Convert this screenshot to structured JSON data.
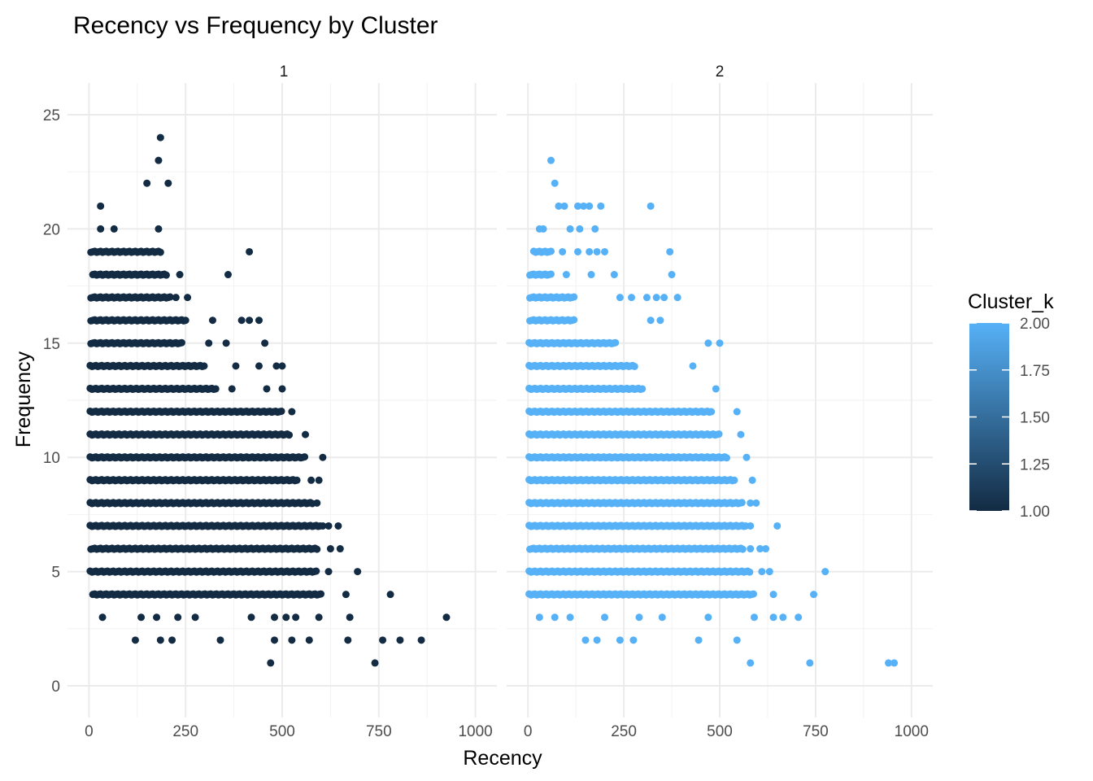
{
  "chart_data": {
    "type": "scatter",
    "title": "Recency vs Frequency by Cluster",
    "xlabel": "Recency",
    "ylabel": "Frequency",
    "facet_labels": [
      "1",
      "2"
    ],
    "xlim": [
      0,
      1000
    ],
    "ylim": [
      0,
      25
    ],
    "x_ticks": [
      0,
      250,
      500,
      750,
      1000
    ],
    "x_tick_labels": [
      "0",
      "250",
      "500",
      "750",
      "1000"
    ],
    "y_ticks": [
      0,
      5,
      10,
      15,
      20,
      25
    ],
    "y_tick_labels": [
      "0",
      "5",
      "10",
      "15",
      "20",
      "25"
    ],
    "grid": true,
    "legend": {
      "title": "Cluster_k",
      "position": "right",
      "ticks": [
        "1.00",
        "1.25",
        "1.50",
        "1.75",
        "2.00"
      ],
      "tick_values": [
        1.0,
        1.25,
        1.5,
        1.75,
        2.0
      ],
      "color_low": "#132b43",
      "color_high": "#56b1f7"
    },
    "panels": [
      {
        "facet": "1",
        "cluster_k": 1,
        "color": "#132b43",
        "dense_rows": [
          {
            "y": 19,
            "x0": 5,
            "x1": 185
          },
          {
            "y": 18,
            "x0": 10,
            "x1": 200
          },
          {
            "y": 17,
            "x0": 5,
            "x1": 210
          },
          {
            "y": 16,
            "x0": 5,
            "x1": 250
          },
          {
            "y": 15,
            "x0": 5,
            "x1": 240
          },
          {
            "y": 14,
            "x0": 3,
            "x1": 300
          },
          {
            "y": 13,
            "x0": 3,
            "x1": 330
          },
          {
            "y": 12,
            "x0": 3,
            "x1": 500
          },
          {
            "y": 11,
            "x0": 3,
            "x1": 520
          },
          {
            "y": 10,
            "x0": 3,
            "x1": 560
          },
          {
            "y": 9,
            "x0": 3,
            "x1": 540
          },
          {
            "y": 8,
            "x0": 3,
            "x1": 580
          },
          {
            "y": 7,
            "x0": 3,
            "x1": 600
          },
          {
            "y": 6,
            "x0": 5,
            "x1": 590
          },
          {
            "y": 5,
            "x0": 3,
            "x1": 590
          },
          {
            "y": 4,
            "x0": 10,
            "x1": 600
          }
        ],
        "points": [
          [
            185,
            24
          ],
          [
            180,
            23
          ],
          [
            150,
            22
          ],
          [
            205,
            22
          ],
          [
            30,
            21
          ],
          [
            30,
            20
          ],
          [
            65,
            20
          ],
          [
            180,
            20
          ],
          [
            415,
            19
          ],
          [
            235,
            18
          ],
          [
            360,
            18
          ],
          [
            225,
            17
          ],
          [
            255,
            17
          ],
          [
            320,
            16
          ],
          [
            395,
            16
          ],
          [
            415,
            16
          ],
          [
            440,
            16
          ],
          [
            310,
            15
          ],
          [
            355,
            15
          ],
          [
            455,
            15
          ],
          [
            250,
            14
          ],
          [
            380,
            14
          ],
          [
            440,
            14
          ],
          [
            485,
            14
          ],
          [
            500,
            14
          ],
          [
            370,
            13
          ],
          [
            460,
            13
          ],
          [
            500,
            13
          ],
          [
            525,
            12
          ],
          [
            560,
            11
          ],
          [
            605,
            10
          ],
          [
            575,
            9
          ],
          [
            595,
            9
          ],
          [
            590,
            8
          ],
          [
            605,
            7
          ],
          [
            620,
            7
          ],
          [
            645,
            7
          ],
          [
            625,
            6
          ],
          [
            650,
            6
          ],
          [
            620,
            5
          ],
          [
            695,
            5
          ],
          [
            665,
            4
          ],
          [
            780,
            4
          ],
          [
            35,
            3
          ],
          [
            135,
            3
          ],
          [
            175,
            3
          ],
          [
            230,
            3
          ],
          [
            275,
            3
          ],
          [
            420,
            3
          ],
          [
            480,
            3
          ],
          [
            510,
            3
          ],
          [
            535,
            3
          ],
          [
            595,
            3
          ],
          [
            675,
            3
          ],
          [
            925,
            3
          ],
          [
            120,
            2
          ],
          [
            185,
            2
          ],
          [
            215,
            2
          ],
          [
            340,
            2
          ],
          [
            480,
            2
          ],
          [
            525,
            2
          ],
          [
            570,
            2
          ],
          [
            670,
            2
          ],
          [
            760,
            2
          ],
          [
            805,
            2
          ],
          [
            860,
            2
          ],
          [
            470,
            1
          ],
          [
            740,
            1
          ]
        ]
      },
      {
        "facet": "2",
        "cluster_k": 2,
        "color": "#56b1f7",
        "dense_rows": [
          {
            "y": 19,
            "x0": 15,
            "x1": 60
          },
          {
            "y": 18,
            "x0": 5,
            "x1": 60
          },
          {
            "y": 17,
            "x0": 5,
            "x1": 120
          },
          {
            "y": 16,
            "x0": 5,
            "x1": 120
          },
          {
            "y": 15,
            "x0": 3,
            "x1": 230
          },
          {
            "y": 14,
            "x0": 3,
            "x1": 280
          },
          {
            "y": 13,
            "x0": 3,
            "x1": 300
          },
          {
            "y": 12,
            "x0": 3,
            "x1": 480
          },
          {
            "y": 11,
            "x0": 3,
            "x1": 500
          },
          {
            "y": 10,
            "x0": 3,
            "x1": 520
          },
          {
            "y": 9,
            "x0": 3,
            "x1": 540
          },
          {
            "y": 8,
            "x0": 3,
            "x1": 560
          },
          {
            "y": 7,
            "x0": 3,
            "x1": 570
          },
          {
            "y": 6,
            "x0": 5,
            "x1": 560
          },
          {
            "y": 5,
            "x0": 3,
            "x1": 580
          },
          {
            "y": 4,
            "x0": 3,
            "x1": 590
          }
        ],
        "points": [
          [
            60,
            23
          ],
          [
            70,
            22
          ],
          [
            80,
            21
          ],
          [
            95,
            21
          ],
          [
            130,
            21
          ],
          [
            145,
            21
          ],
          [
            160,
            21
          ],
          [
            190,
            21
          ],
          [
            320,
            21
          ],
          [
            30,
            20
          ],
          [
            40,
            20
          ],
          [
            110,
            20
          ],
          [
            135,
            20
          ],
          [
            175,
            20
          ],
          [
            90,
            19
          ],
          [
            130,
            19
          ],
          [
            160,
            19
          ],
          [
            180,
            19
          ],
          [
            200,
            19
          ],
          [
            370,
            19
          ],
          [
            100,
            18
          ],
          [
            165,
            18
          ],
          [
            225,
            18
          ],
          [
            375,
            18
          ],
          [
            240,
            17
          ],
          [
            270,
            17
          ],
          [
            310,
            17
          ],
          [
            335,
            17
          ],
          [
            355,
            17
          ],
          [
            390,
            17
          ],
          [
            320,
            16
          ],
          [
            345,
            16
          ],
          [
            470,
            15
          ],
          [
            500,
            15
          ],
          [
            430,
            14
          ],
          [
            490,
            13
          ],
          [
            545,
            12
          ],
          [
            555,
            11
          ],
          [
            570,
            10
          ],
          [
            585,
            9
          ],
          [
            580,
            8
          ],
          [
            595,
            8
          ],
          [
            580,
            7
          ],
          [
            650,
            7
          ],
          [
            580,
            6
          ],
          [
            605,
            6
          ],
          [
            620,
            6
          ],
          [
            775,
            5
          ],
          [
            610,
            5
          ],
          [
            630,
            5
          ],
          [
            745,
            4
          ],
          [
            640,
            4
          ],
          [
            30,
            3
          ],
          [
            70,
            3
          ],
          [
            110,
            3
          ],
          [
            200,
            3
          ],
          [
            290,
            3
          ],
          [
            350,
            3
          ],
          [
            470,
            3
          ],
          [
            590,
            3
          ],
          [
            640,
            3
          ],
          [
            665,
            3
          ],
          [
            705,
            3
          ],
          [
            150,
            2
          ],
          [
            180,
            2
          ],
          [
            240,
            2
          ],
          [
            275,
            2
          ],
          [
            445,
            2
          ],
          [
            545,
            2
          ],
          [
            580,
            1
          ],
          [
            735,
            1
          ],
          [
            940,
            1
          ],
          [
            955,
            1
          ]
        ]
      }
    ]
  }
}
